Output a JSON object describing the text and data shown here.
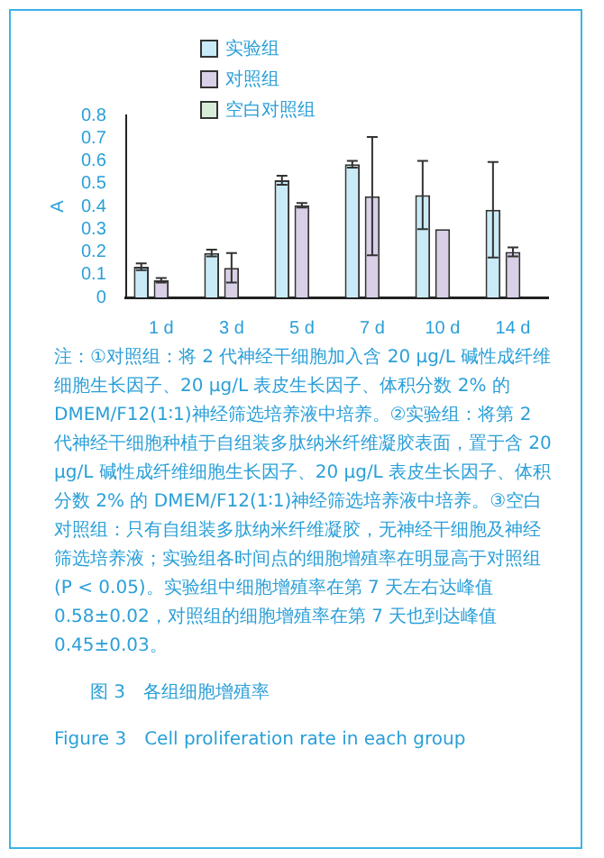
{
  "chart_data": {
    "type": "bar",
    "ylabel": "A",
    "categories": [
      "1 d",
      "3 d",
      "5 d",
      "7 d",
      "10 d",
      "14 d"
    ],
    "series": [
      {
        "name": "实验组",
        "color": "#c9ebf7",
        "values": [
          0.135,
          0.195,
          0.515,
          0.585,
          0.45,
          0.385
        ],
        "errors": [
          0.015,
          0.015,
          0.02,
          0.015,
          0.15,
          0.21
        ]
      },
      {
        "name": "对照组",
        "color": "#d9cfe6",
        "values": [
          0.075,
          0.13,
          0.405,
          0.445,
          0.3,
          0.2
        ],
        "errors": [
          0.01,
          0.065,
          0.01,
          0.26,
          null,
          0.02
        ]
      },
      {
        "name": "空白对照组",
        "color": "#d6ecd6",
        "values": [
          null,
          null,
          null,
          null,
          null,
          null
        ]
      }
    ],
    "ylim": [
      0,
      0.8
    ],
    "yticks": [
      0,
      0.1,
      0.2,
      0.3,
      0.4,
      0.5,
      0.6,
      0.7,
      0.8
    ],
    "grid": false,
    "legend": "top left",
    "annotations": [
      "注：①对照组：将 2 代神经干细胞加入含 20 μg/L 碱性成纤维细胞生长因子、20 μg/L 表皮生长因子、体积分数 2% 的 DMEM/F12(1∶1)神经筛选培养液中培养。②实验组：将第 2 代神经干细胞种植于自组装多肽纳米纤维凝胶表面，置于含 20 μg/L 碱性成纤维细胞生长因子、20 μg/L 表皮生长因子、体积分数 2% 的 DMEM/F12(1∶1)神经筛选培养液中培养。③空白对照组：只有自组装多肽纳米纤维凝胶，无神经干细胞及神经筛选培养液；实验组各时间点的细胞增殖率在明显高于对照组(P < 0.05)。实验组中细胞增殖率在第 7 天左右达峰值 0.58±0.02，对照组的细胞增殖率在第 7 天也到达峰值 0.45±0.03。",
      "图 3　各组细胞增殖率",
      "Figure 3　Cell proliferation rate in each group"
    ]
  }
}
